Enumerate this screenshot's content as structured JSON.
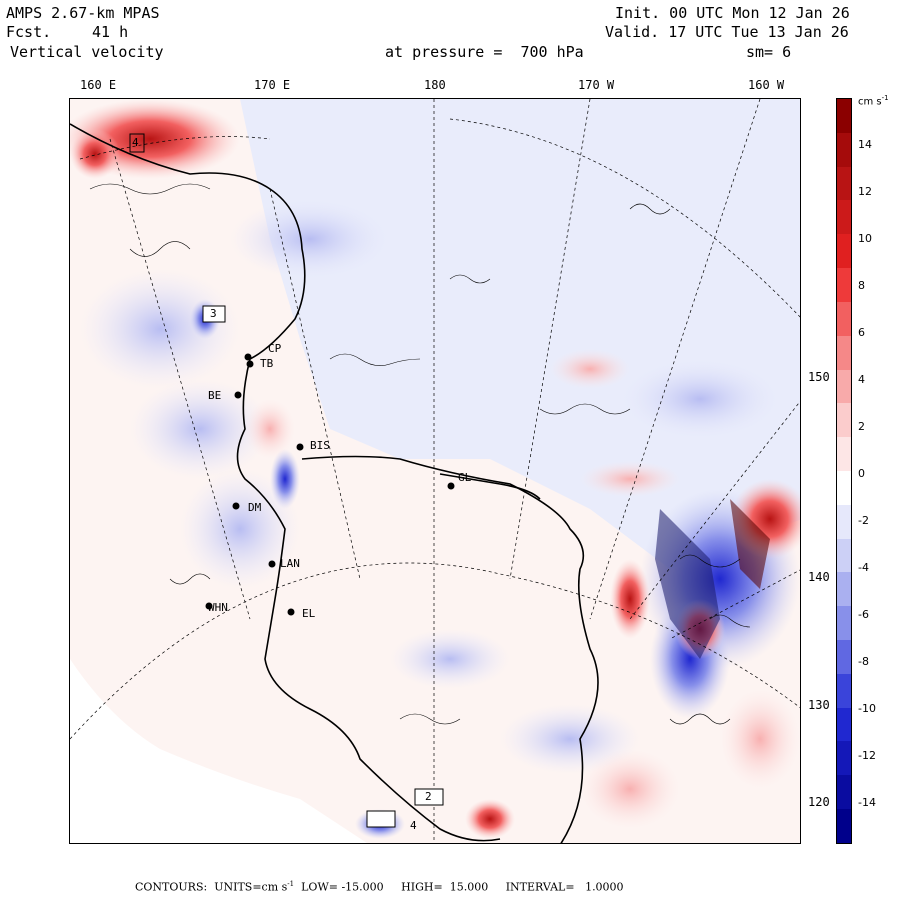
{
  "header": {
    "model": "AMPS 2.67-km MPAS",
    "fcst_label": "Fcst.",
    "fcst_value": "41 h",
    "field": "Vertical velocity",
    "init": "Init. 00 UTC Mon 12 Jan 26",
    "valid": "Valid. 17 UTC Tue 13 Jan 26",
    "pressure": "at pressure =  700 hPa",
    "smoothing": "sm= 6"
  },
  "longitude_labels_top": [
    "160 E",
    "170 E",
    "180",
    "170 W",
    "160 W"
  ],
  "longitude_labels_right": [
    "150 W",
    "140 W",
    "130 W",
    "120 W"
  ],
  "colorbar": {
    "units": "cm s",
    "units_exp": "-1",
    "tick_labels": [
      "14",
      "12",
      "10",
      "8",
      "6",
      "4",
      "2",
      "0",
      "-2",
      "-4",
      "-6",
      "-8",
      "-10",
      "-12",
      "-14"
    ],
    "colors": [
      "#8b0000",
      "#a50b0b",
      "#b81414",
      "#cc1a1a",
      "#e02020",
      "#ee3a3a",
      "#f26060",
      "#f58888",
      "#f8aaaa",
      "#fbcccc",
      "#fde6e6",
      "#ffffff",
      "#e6e8fb",
      "#ccd0f6",
      "#aab0f0",
      "#8890ea",
      "#6068e2",
      "#3a44da",
      "#2028d0",
      "#1418b8",
      "#0a0ca0",
      "#00008b"
    ]
  },
  "stations": [
    "CP",
    "TB",
    "BE",
    "BIS",
    "GL",
    "DM",
    "LAN",
    "WHN",
    "EL"
  ],
  "contour_highs": [
    "4"
  ],
  "box_labels": [
    "3",
    "2",
    "4"
  ],
  "footer": {
    "contours": "CONTOURS:",
    "units": "UNITS=cm s",
    "units_exp": "-1",
    "low": "LOW= -15.000",
    "high": "HIGH=  15.000",
    "interval": "INTERVAL=   1.0000"
  }
}
